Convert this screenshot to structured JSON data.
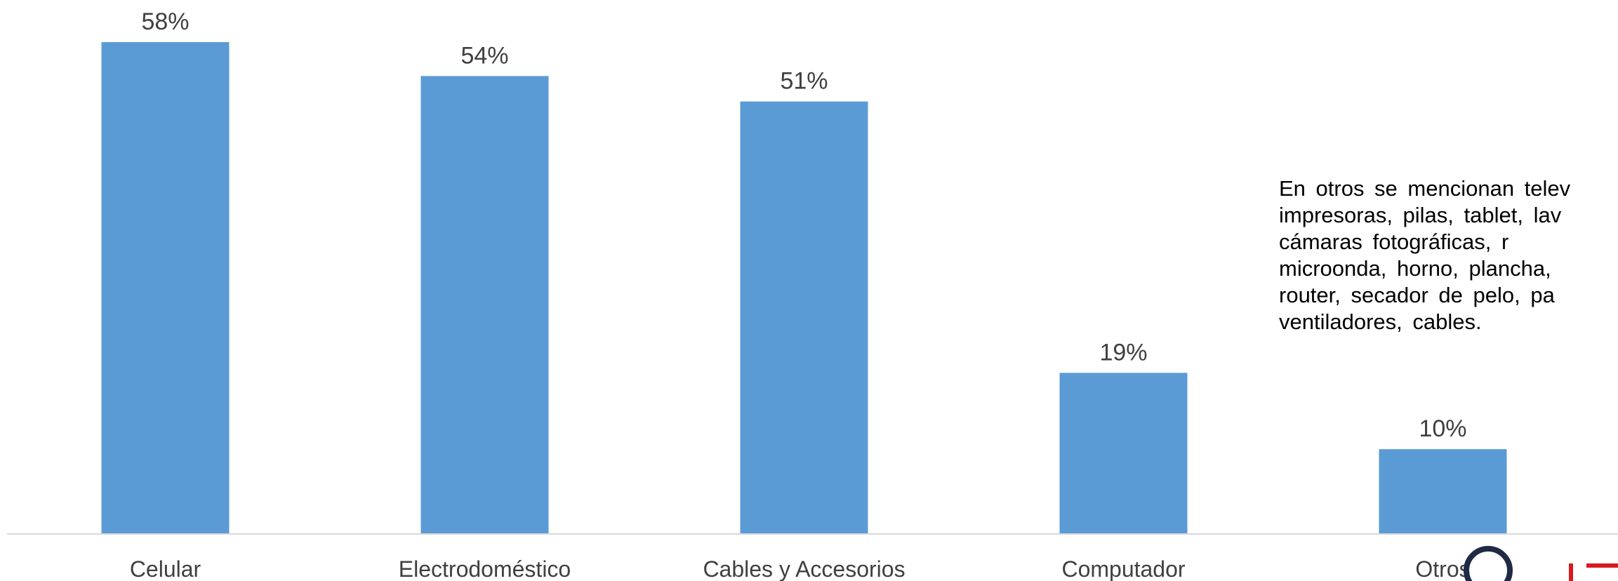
{
  "chart_data": {
    "type": "bar",
    "categories": [
      "Celular",
      "Electrodoméstico",
      "Cables y Accesorios",
      "Computador",
      "Otros"
    ],
    "values": [
      58,
      54,
      51,
      19,
      10
    ],
    "data_labels": [
      "58%",
      "54%",
      "51%",
      "19%",
      "10%"
    ],
    "ylim": [
      0,
      58
    ],
    "grid": false,
    "legend": "none",
    "colors": {
      "bar": "#5B9BD5",
      "axis": "#D9D9D9",
      "label": "#404040"
    }
  },
  "note": {
    "lines": [
      "En otros se mencionan telev",
      "impresoras, pilas, tablet, lav",
      "cámaras fotográficas, r",
      "microonda, horno, plancha,",
      "router, secador de pelo, pa",
      "ventiladores, cables."
    ]
  },
  "logo": {
    "icon": "institution-logo",
    "colors": [
      "#1F2A44",
      "#D71920"
    ]
  }
}
